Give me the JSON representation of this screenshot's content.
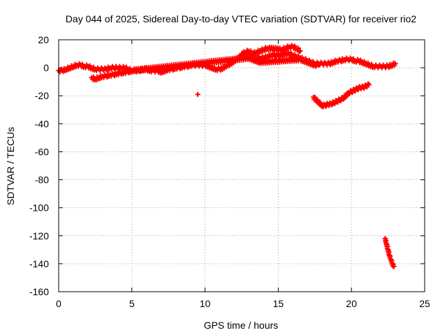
{
  "chart_data": {
    "type": "scatter",
    "title": "Day 044 of 2025, Sidereal Day-to-day VTEC variation (SDTVAR) for receiver rio2",
    "xlabel": "GPS time / hours",
    "ylabel": "SDTVAR / TECUs",
    "xlim": [
      0,
      25
    ],
    "ylim": [
      -160,
      20
    ],
    "x_ticks": [
      0,
      5,
      10,
      15,
      20,
      25
    ],
    "y_ticks": [
      -160,
      -140,
      -120,
      -100,
      -80,
      -60,
      -40,
      -20,
      0,
      20
    ],
    "grid": true,
    "marker": "+",
    "color": "#ff0000",
    "series": [
      {
        "name": "main-band",
        "x": [
          0.0,
          0.25,
          0.5,
          0.75,
          1.0,
          1.25,
          1.5,
          1.75,
          2.0,
          2.25,
          2.5,
          2.75,
          3.0,
          3.25,
          3.5,
          3.75,
          4.0,
          4.25,
          4.5,
          4.75,
          5.0,
          5.25,
          5.5,
          5.75,
          6.0,
          6.25,
          6.5,
          6.75,
          7.0,
          7.25,
          7.5,
          7.75,
          8.0,
          8.25,
          8.5,
          8.75,
          9.0,
          9.25,
          9.5,
          9.75,
          10.0,
          10.25,
          10.5,
          10.75,
          11.0,
          11.25,
          11.5,
          11.75,
          12.0,
          12.25,
          12.5,
          12.75,
          13.0,
          13.25,
          13.5,
          13.75,
          14.0,
          14.25,
          14.5,
          14.75,
          15.0,
          15.25,
          15.5,
          15.75,
          16.0,
          16.25,
          16.5,
          16.75,
          17.0,
          17.25,
          17.5,
          17.75,
          18.0,
          18.25,
          18.5,
          18.75,
          19.0,
          19.25,
          19.5,
          19.75,
          20.0,
          20.25,
          20.5,
          20.75,
          21.0,
          21.25,
          21.5,
          21.75,
          22.0,
          22.25,
          22.5,
          22.75,
          23.0
        ],
        "y": [
          -2,
          -2,
          -1,
          0,
          1,
          2,
          2,
          1,
          1,
          0,
          -1,
          -1,
          -1,
          -1,
          0,
          0,
          0,
          0,
          0,
          -1,
          -2,
          -2,
          -2,
          -1,
          -1,
          -2,
          -2,
          -2,
          -3,
          -2,
          -1,
          -1,
          0,
          0,
          1,
          1,
          2,
          2,
          2,
          2,
          2,
          1,
          0,
          -1,
          -1,
          0,
          2,
          3,
          5,
          7,
          9,
          10,
          9,
          8,
          7,
          7,
          7,
          8,
          9,
          9,
          9,
          9,
          10,
          10,
          9,
          8,
          7,
          6,
          5,
          4,
          3,
          3,
          3,
          3,
          3,
          4,
          5,
          5,
          6,
          6,
          6,
          5,
          5,
          4,
          3,
          2,
          1,
          1,
          1,
          1,
          1,
          2,
          3
        ]
      },
      {
        "name": "upper-streaks",
        "x": [
          12.5,
          12.75,
          13.0,
          13.25,
          13.5,
          13.75,
          14.0,
          14.25,
          15.25,
          15.5,
          15.75,
          16.0,
          16.25,
          16.5
        ],
        "y": [
          10,
          11,
          12,
          10,
          11,
          12,
          13,
          14,
          13,
          14,
          15,
          15,
          14,
          12
        ]
      },
      {
        "name": "lower-streaks",
        "x": [
          2.25,
          2.5,
          2.75,
          3.0,
          3.25,
          3.5,
          3.75,
          4.0,
          4.25,
          4.5,
          4.75,
          5.0,
          13.0,
          13.25,
          13.5,
          13.75,
          16.5,
          16.75,
          17.0,
          17.25,
          17.5,
          17.75
        ],
        "y": [
          -7,
          -8,
          -7,
          -6,
          -6,
          -5,
          -5,
          -4,
          -4,
          -3,
          -3,
          -2,
          7,
          6,
          5,
          4,
          6,
          5,
          4,
          3,
          2,
          2
        ]
      },
      {
        "name": "dip-arc",
        "x": [
          17.4,
          17.6,
          17.8,
          18.0,
          18.2,
          18.4,
          18.6,
          18.8,
          19.0,
          19.2,
          19.4,
          19.6,
          19.8,
          20.0,
          20.2,
          20.4,
          20.6,
          20.8,
          21.0,
          21.2
        ],
        "y": [
          -21,
          -23,
          -25,
          -27,
          -27,
          -26,
          -26,
          -25,
          -24,
          -23,
          -22,
          -20,
          -18,
          -17,
          -16,
          -15,
          -14,
          -14,
          -13,
          -12
        ]
      },
      {
        "name": "isolated-point",
        "x": [
          9.5
        ],
        "y": [
          -19
        ]
      },
      {
        "name": "drop-segment",
        "x": [
          22.3,
          22.4,
          22.5,
          22.6,
          22.7,
          22.8,
          22.9
        ],
        "y": [
          -122,
          -126,
          -130,
          -134,
          -137,
          -140,
          -142
        ]
      }
    ]
  }
}
